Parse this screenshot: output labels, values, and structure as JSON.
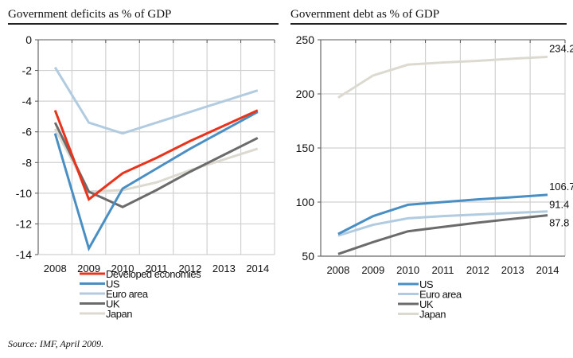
{
  "chart_data": [
    {
      "type": "line",
      "title": "Government deficits as % of GDP",
      "xlabel": "",
      "ylabel": "",
      "categories": [
        "2008",
        "2009",
        "2010",
        "2011",
        "2012",
        "2013",
        "2014"
      ],
      "ylim": [
        -14,
        0
      ],
      "yticks": [
        0,
        -2,
        -4,
        -6,
        -8,
        -10,
        -12,
        -14
      ],
      "grid": true,
      "legend_position": "bottom",
      "series": [
        {
          "name": "Developed economies",
          "color": "#e8341c",
          "values": [
            -4.6,
            -10.4,
            -8.7,
            -7.7,
            -6.6,
            -5.6,
            -4.6
          ]
        },
        {
          "name": "US",
          "color": "#4a8fc4",
          "values": [
            -6.1,
            -13.6,
            -9.7,
            -8.4,
            -7.1,
            -5.9,
            -4.7
          ]
        },
        {
          "name": "Euro area",
          "color": "#b1cbe0",
          "values": [
            -1.8,
            -5.4,
            -6.1,
            -5.4,
            -4.7,
            -4.0,
            -3.3
          ]
        },
        {
          "name": "UK",
          "color": "#6b6b6b",
          "values": [
            -5.4,
            -9.9,
            -10.9,
            -9.8,
            -8.6,
            -7.5,
            -6.4
          ]
        },
        {
          "name": "Japan",
          "color": "#dcdad0",
          "values": [
            -5.8,
            -9.9,
            -9.8,
            -9.3,
            -8.5,
            -7.8,
            -7.1
          ]
        }
      ]
    },
    {
      "type": "line",
      "title": "Government debt as % of GDP",
      "xlabel": "",
      "ylabel": "",
      "categories": [
        "2008",
        "2009",
        "2010",
        "2011",
        "2012",
        "2013",
        "2014"
      ],
      "ylim": [
        50,
        250
      ],
      "yticks": [
        250,
        200,
        150,
        100,
        50
      ],
      "grid": true,
      "legend_position": "bottom",
      "series": [
        {
          "name": "US",
          "color": "#4a8fc4",
          "values": [
            70.5,
            87.0,
            97.5,
            100.0,
            102.5,
            104.5,
            106.7
          ],
          "end_label": "106.7"
        },
        {
          "name": "Euro area",
          "color": "#b1cbe0",
          "values": [
            69.0,
            79.0,
            85.0,
            87.0,
            88.5,
            90.0,
            91.4
          ],
          "end_label": "91.4"
        },
        {
          "name": "UK",
          "color": "#6b6b6b",
          "values": [
            52.0,
            63.0,
            73.0,
            77.0,
            81.0,
            84.5,
            87.8
          ],
          "end_label": "87.8"
        },
        {
          "name": "Japan",
          "color": "#dcdad0",
          "values": [
            196.5,
            217.0,
            227.0,
            229.0,
            230.5,
            232.5,
            234.2
          ],
          "end_label": "234.2"
        }
      ]
    }
  ],
  "footer": {
    "source": "Source: IMF, April 2009."
  }
}
